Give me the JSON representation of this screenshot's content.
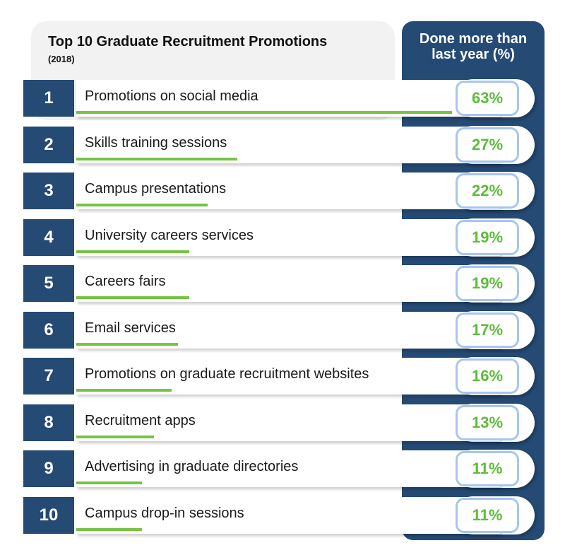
{
  "header": {
    "title": "Top 10 Graduate Recruitment Promotions",
    "subtitle": "(2018)",
    "column_header_line1": "Done more than",
    "column_header_line2": "last year (%)"
  },
  "colors": {
    "navy": "#254a74",
    "bar_green": "#76c442",
    "percent_green": "#5cbd3a",
    "pill_border": "#a7c6ee"
  },
  "chart_data": {
    "type": "bar",
    "title": "Top 10 Graduate Recruitment Promotions",
    "subtitle": "(2018)",
    "ylabel": "Done more than last year (%)",
    "ranks": [
      "1",
      "2",
      "3",
      "4",
      "5",
      "6",
      "7",
      "8",
      "9",
      "10"
    ],
    "categories": [
      "Promotions on social media",
      "Skills training sessions",
      "Campus presentations",
      "University careers services",
      "Careers fairs",
      "Email services",
      "Promotions on graduate recruitment websites",
      "Recruitment apps",
      "Advertising in graduate directories",
      "Campus drop-in sessions"
    ],
    "values": [
      63,
      27,
      22,
      19,
      19,
      17,
      16,
      13,
      11,
      11
    ],
    "value_labels": [
      "63%",
      "27%",
      "22%",
      "19%",
      "19%",
      "17%",
      "16%",
      "13%",
      "11%",
      "11%"
    ],
    "ylim": [
      0,
      63
    ]
  }
}
